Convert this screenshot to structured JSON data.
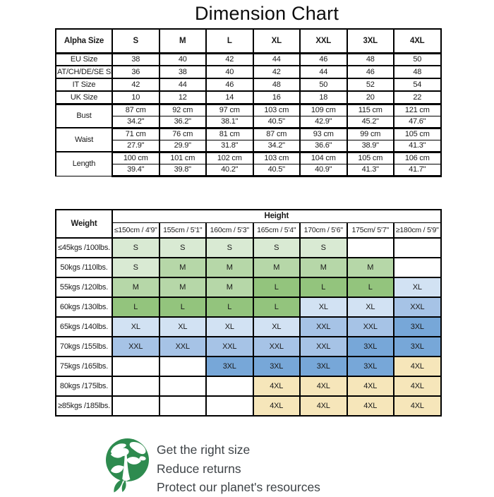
{
  "title": "Dimension Chart",
  "size_table": {
    "header": [
      "Alpha Size",
      "S",
      "M",
      "L",
      "XL",
      "XXL",
      "3XL",
      "4XL"
    ],
    "rows": [
      {
        "label": "EU Size",
        "values": [
          "38",
          "40",
          "42",
          "44",
          "46",
          "48",
          "50"
        ]
      },
      {
        "label": "AT/CH/DE/SE Size",
        "values": [
          "36",
          "38",
          "40",
          "42",
          "44",
          "46",
          "48"
        ]
      },
      {
        "label": "IT Size",
        "values": [
          "42",
          "44",
          "46",
          "48",
          "50",
          "52",
          "54"
        ]
      },
      {
        "label": "UK Size",
        "values": [
          "10",
          "12",
          "14",
          "16",
          "18",
          "20",
          "22"
        ]
      }
    ],
    "measure_rows": [
      {
        "label": "Bust",
        "cm": [
          "87 cm",
          "92 cm",
          "97 cm",
          "103 cm",
          "109 cm",
          "115 cm",
          "121 cm"
        ],
        "inch": [
          "34.2\"",
          "36.2\"",
          "38.1\"",
          "40.5\"",
          "42.9\"",
          "45.2\"",
          "47.6\""
        ]
      },
      {
        "label": "Waist",
        "cm": [
          "71 cm",
          "76 cm",
          "81 cm",
          "87 cm",
          "93 cm",
          "99 cm",
          "105 cm"
        ],
        "inch": [
          "27.9\"",
          "29.9\"",
          "31.8\"",
          "34.2\"",
          "36.6\"",
          "38.9\"",
          "41.3\""
        ]
      },
      {
        "label": "Length",
        "cm": [
          "100 cm",
          "101 cm",
          "102 cm",
          "103 cm",
          "104 cm",
          "105 cm",
          "106 cm"
        ],
        "inch": [
          "39.4\"",
          "39.8\"",
          "40.2\"",
          "40.5\"",
          "40.9\"",
          "41.3\"",
          "41.7\""
        ]
      }
    ]
  },
  "fit_table": {
    "corner_label": "Weight",
    "height_label": "Height",
    "height_columns": [
      "≤150cm / 4'9\"",
      "155cm / 5'1\"",
      "160cm / 5'3\"",
      "165cm / 5'4\"",
      "170cm / 5'6\"",
      "175cm/ 5'7\"",
      "≥180cm / 5'9\""
    ],
    "rows": [
      {
        "label": "≤45kgs /100lbs.",
        "cells": [
          "S",
          "S",
          "S",
          "S",
          "S",
          "",
          ""
        ]
      },
      {
        "label": "50kgs /110lbs.",
        "cells": [
          "S",
          "M",
          "M",
          "M",
          "M",
          "M",
          ""
        ]
      },
      {
        "label": "55kgs /120lbs.",
        "cells": [
          "M",
          "M",
          "M",
          "L",
          "L",
          "L",
          "XL"
        ]
      },
      {
        "label": "60kgs /130lbs.",
        "cells": [
          "L",
          "L",
          "L",
          "L",
          "XL",
          "XL",
          "XXL"
        ]
      },
      {
        "label": "65kgs /140lbs.",
        "cells": [
          "XL",
          "XL",
          "XL",
          "XL",
          "XXL",
          "XXL",
          "3XL"
        ]
      },
      {
        "label": "70kgs /155lbs.",
        "cells": [
          "XXL",
          "XXL",
          "XXL",
          "XXL",
          "XXL",
          "3XL",
          "3XL"
        ]
      },
      {
        "label": "75kgs /165lbs.",
        "cells": [
          "",
          "",
          "3XL",
          "3XL",
          "3XL",
          "3XL",
          "4XL"
        ]
      },
      {
        "label": "80kgs /175lbs.",
        "cells": [
          "",
          "",
          "",
          "4XL",
          "4XL",
          "4XL",
          "4XL"
        ]
      },
      {
        "label": "≥85kgs /185lbs.",
        "cells": [
          "",
          "",
          "",
          "4XL",
          "4XL",
          "4XL",
          "4XL"
        ]
      }
    ],
    "cell_colors": {
      "S": "#d9ead3",
      "M": "#b6d7a8",
      "L": "#93c47d",
      "XL": "#d2e2f3",
      "XXL": "#a6c3e6",
      "3XL": "#77a7d8",
      "4XL": "#f6e6ba",
      "": "#ffffff"
    }
  },
  "footer": {
    "icon": "earth-plant-icon",
    "lines": [
      "Get the right size",
      "Reduce returns",
      "Protect our planet's resources"
    ]
  },
  "colors": {
    "border": "#000000",
    "icon_green": "#2e8b4f",
    "footer_text": "#3e4347"
  }
}
